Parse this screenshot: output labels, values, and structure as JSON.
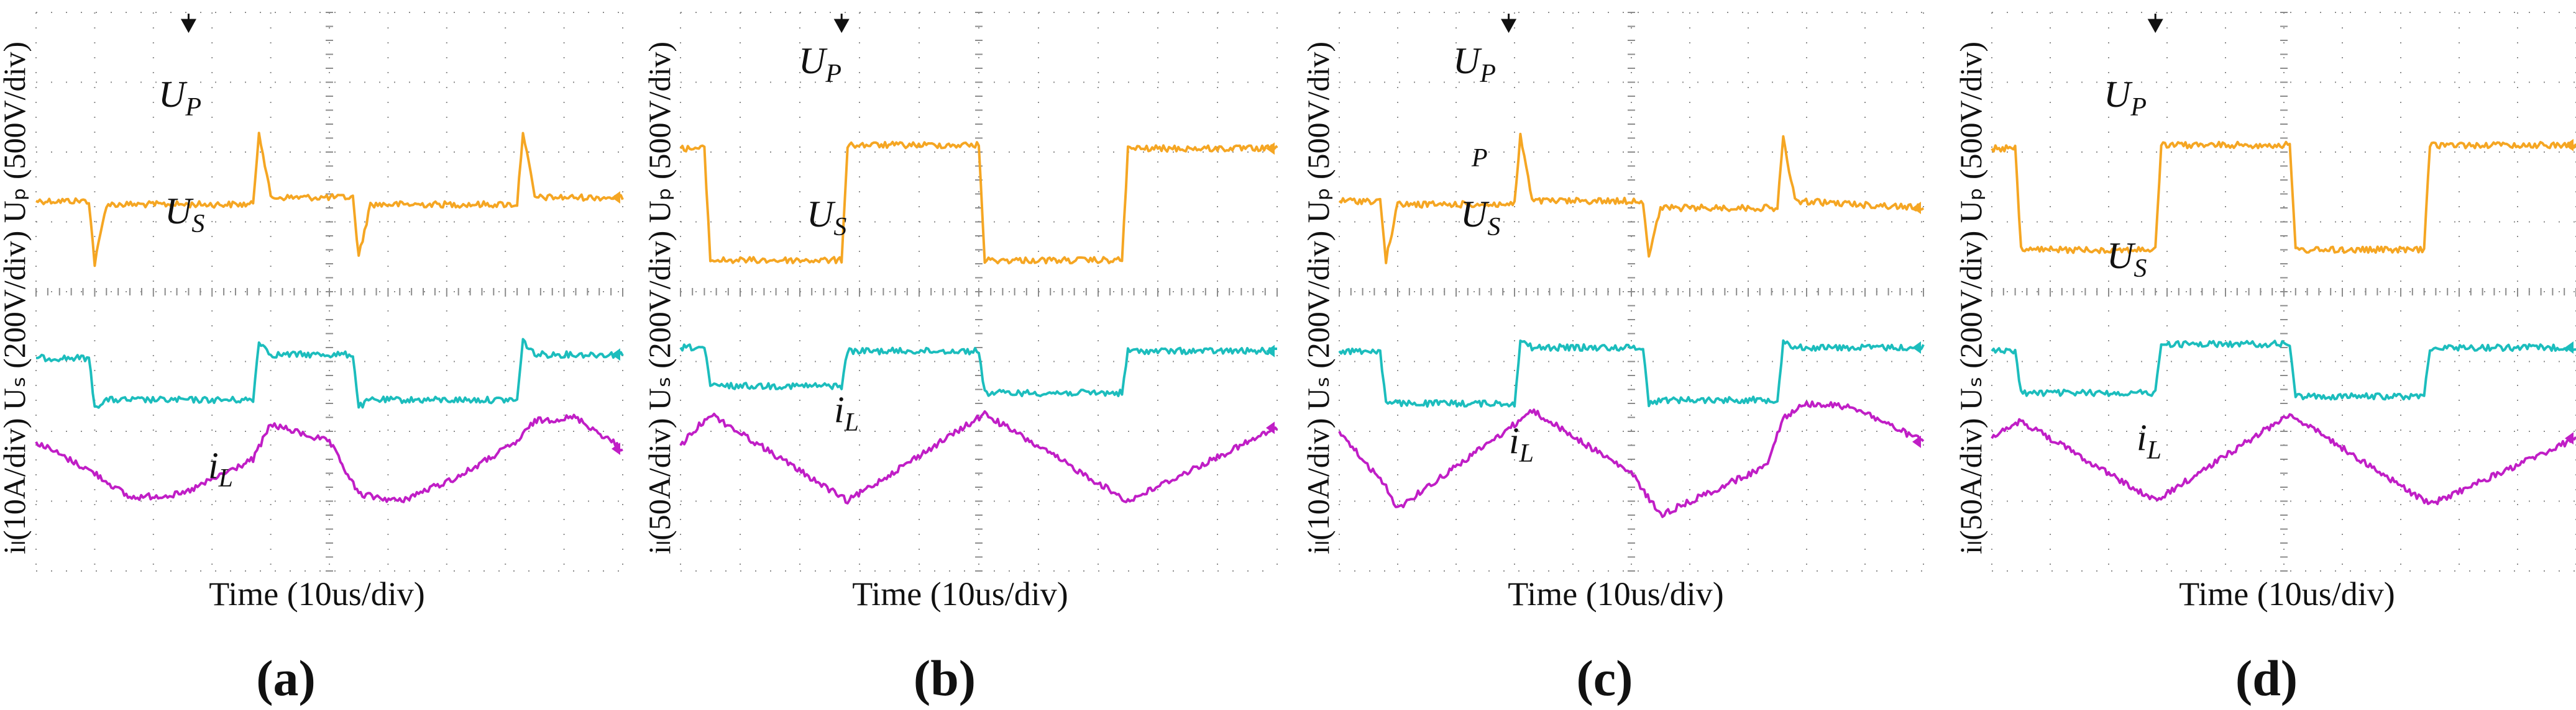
{
  "figure": {
    "colors": {
      "up": "#f5a623",
      "us": "#1cbdbd",
      "il": "#c01ec6",
      "grid": "#8c8c8c",
      "text": "#111111"
    },
    "panels": [
      {
        "id": "a",
        "label": "(a)",
        "ylabel": "iₗ(10A/div) Uₛ (200V/div) Uₚ (500V/div)",
        "xlabel": "Time (10us/div)",
        "trace_labels": {
          "up": "U",
          "up_sub": "P",
          "us": "U",
          "us_sub": "S",
          "il": "i",
          "il_sub": "L"
        }
      },
      {
        "id": "b",
        "label": "(b)",
        "ylabel": "iₗ(50A/div) Uₛ (200V/div) Uₚ (500V/div)",
        "xlabel": "Time (10us/div)",
        "trace_labels": {
          "up": "U",
          "up_sub": "P",
          "us": "U",
          "us_sub": "S",
          "il": "i",
          "il_sub": "L"
        }
      },
      {
        "id": "c",
        "label": "(c)",
        "ylabel": "iₗ(10A/div) Uₛ (200V/div) Uₚ (500V/div)",
        "xlabel": "Time (10us/div)",
        "trace_labels": {
          "up": "U",
          "up_sub": "P",
          "us": "U",
          "us_sub": "S",
          "il": "i",
          "il_sub": "L",
          "stray": "P"
        }
      },
      {
        "id": "d",
        "label": "(d)",
        "ylabel": "iₗ(50A/div) Uₛ (200V/div) Uₚ (500V/div)",
        "xlabel": "Time (10us/div)",
        "trace_labels": {
          "up": "U",
          "up_sub": "P",
          "us": "U",
          "us_sub": "S",
          "il": "i",
          "il_sub": "L"
        }
      }
    ]
  },
  "chart_data": [
    {
      "type": "line",
      "title": "(a)",
      "xlabel": "Time (10us/div)",
      "ylabel": "iL(10A/div) US (200V/div) UP (500V/div)",
      "xlim": [
        0,
        100
      ],
      "ylim": [
        0,
        8
      ],
      "grid": true,
      "series": [
        {
          "name": "UP",
          "x": [
            0,
            9,
            10,
            12,
            37,
            38,
            40,
            54,
            55,
            57,
            82,
            83,
            85,
            100
          ],
          "values": [
            5.3,
            5.3,
            4.4,
            5.25,
            5.25,
            6.3,
            5.35,
            5.35,
            4.5,
            5.25,
            5.25,
            6.3,
            5.35,
            5.35
          ]
        },
        {
          "name": "US",
          "x": [
            0,
            9,
            10,
            12,
            37,
            38,
            40,
            54,
            55,
            57,
            82,
            83,
            85,
            100
          ],
          "values": [
            3.05,
            3.05,
            2.35,
            2.45,
            2.45,
            3.3,
            3.1,
            3.1,
            2.35,
            2.45,
            2.45,
            3.3,
            3.1,
            3.1
          ]
        },
        {
          "name": "iL",
          "x": [
            0,
            10,
            16,
            25,
            37,
            40,
            50,
            55,
            62,
            72,
            82,
            85,
            92,
            100
          ],
          "values": [
            1.85,
            1.4,
            1.05,
            1.1,
            1.6,
            2.1,
            1.85,
            1.1,
            1.0,
            1.35,
            1.85,
            2.15,
            2.2,
            1.75
          ]
        }
      ]
    },
    {
      "type": "line",
      "title": "(b)",
      "xlabel": "Time (10us/div)",
      "ylabel": "iL(50A/div) US (200V/div) UP (500V/div)",
      "xlim": [
        0,
        100
      ],
      "ylim": [
        0,
        8
      ],
      "grid": true,
      "series": [
        {
          "name": "UP",
          "x": [
            0,
            4,
            5,
            27,
            28,
            50,
            51,
            74,
            75,
            100
          ],
          "values": [
            6.05,
            6.05,
            4.45,
            4.45,
            6.1,
            6.1,
            4.45,
            4.45,
            6.05,
            6.05
          ]
        },
        {
          "name": "US",
          "x": [
            0,
            4,
            5,
            27,
            28,
            50,
            51,
            74,
            75,
            100
          ],
          "values": [
            3.2,
            3.2,
            2.65,
            2.65,
            3.15,
            3.15,
            2.55,
            2.55,
            3.15,
            3.15
          ]
        },
        {
          "name": "iL",
          "x": [
            0,
            5,
            28,
            51,
            75,
            100
          ],
          "values": [
            1.8,
            2.25,
            1.0,
            2.25,
            1.0,
            2.05
          ]
        }
      ]
    },
    {
      "type": "line",
      "title": "(c)",
      "xlabel": "Time (10us/div)",
      "ylabel": "iL(10A/div) US (200V/div) UP (500V/div)",
      "xlim": [
        0,
        100
      ],
      "ylim": [
        0,
        8
      ],
      "grid": true,
      "series": [
        {
          "name": "UP",
          "x": [
            0,
            7,
            8,
            10,
            30,
            31,
            33,
            52,
            53,
            55,
            75,
            76,
            78,
            100
          ],
          "values": [
            5.3,
            5.3,
            4.45,
            5.25,
            5.25,
            6.25,
            5.3,
            5.3,
            4.5,
            5.2,
            5.2,
            6.2,
            5.3,
            5.2
          ]
        },
        {
          "name": "US",
          "x": [
            0,
            7,
            8,
            10,
            30,
            31,
            33,
            52,
            53,
            55,
            75,
            76,
            78,
            100
          ],
          "values": [
            3.15,
            3.15,
            2.4,
            2.4,
            2.4,
            3.3,
            3.2,
            3.2,
            2.4,
            2.45,
            2.45,
            3.3,
            3.2,
            3.2
          ]
        },
        {
          "name": "iL",
          "x": [
            0,
            8,
            10,
            30,
            33,
            50,
            55,
            73,
            76,
            80,
            88,
            100
          ],
          "values": [
            2.0,
            1.2,
            0.9,
            2.1,
            2.3,
            1.4,
            0.8,
            1.5,
            2.2,
            2.4,
            2.35,
            1.85
          ]
        }
      ]
    },
    {
      "type": "line",
      "title": "(d)",
      "xlabel": "Time (10us/div)",
      "ylabel": "iL(50A/div) US (200V/div) UP (500V/div)",
      "xlim": [
        0,
        100
      ],
      "ylim": [
        0,
        8
      ],
      "grid": true,
      "series": [
        {
          "name": "UP",
          "x": [
            0,
            4,
            5,
            28,
            29,
            51,
            52,
            74,
            75,
            100
          ],
          "values": [
            6.05,
            6.05,
            4.6,
            4.6,
            6.1,
            6.1,
            4.6,
            4.6,
            6.1,
            6.1
          ]
        },
        {
          "name": "US",
          "x": [
            0,
            4,
            5,
            28,
            29,
            51,
            52,
            74,
            75,
            100
          ],
          "values": [
            3.15,
            3.15,
            2.55,
            2.55,
            3.25,
            3.25,
            2.5,
            2.5,
            3.2,
            3.2
          ]
        },
        {
          "name": "iL",
          "x": [
            0,
            5,
            28,
            51,
            75,
            100
          ],
          "values": [
            1.9,
            2.15,
            1.0,
            2.25,
            0.95,
            1.9
          ]
        }
      ]
    }
  ]
}
